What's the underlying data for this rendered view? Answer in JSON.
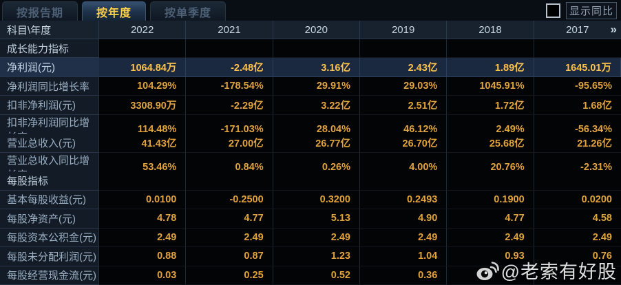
{
  "tabs": {
    "items": [
      {
        "name": "report-period",
        "label": "按报告期",
        "active": false
      },
      {
        "name": "annual",
        "label": "按年度",
        "active": true
      },
      {
        "name": "single-quarter",
        "label": "按单季度",
        "active": false
      }
    ]
  },
  "controls": {
    "show_yoy_label": "显示同比",
    "checkbox_checked": false
  },
  "table": {
    "corner_header": "科目\\年度",
    "year_headers": [
      "2022",
      "2021",
      "2020",
      "2019",
      "2018",
      "2017"
    ],
    "more_icon": "»",
    "rows": [
      {
        "type": "section",
        "label": "成长能力指标",
        "values": [
          "",
          "",
          "",
          "",
          "",
          ""
        ]
      },
      {
        "type": "data",
        "highlight": true,
        "label": "净利润(元)",
        "values": [
          "1064.84万",
          "-2.48亿",
          "3.16亿",
          "2.43亿",
          "1.89亿",
          "1645.01万"
        ]
      },
      {
        "type": "data",
        "highlight": false,
        "label": "净利润同比增长率",
        "values": [
          "104.29%",
          "-178.54%",
          "29.91%",
          "29.03%",
          "1045.91%",
          "-95.65%"
        ]
      },
      {
        "type": "data",
        "highlight": false,
        "label": "扣非净利润(元)",
        "values": [
          "3308.90万",
          "-2.29亿",
          "3.22亿",
          "2.51亿",
          "1.72亿",
          "1.68亿"
        ]
      },
      {
        "type": "data",
        "highlight": false,
        "label": "扣非净利润同比增长率",
        "values": [
          "114.48%",
          "-171.03%",
          "28.04%",
          "46.12%",
          "2.49%",
          "-56.34%"
        ]
      },
      {
        "type": "data",
        "highlight": false,
        "label": "营业总收入(元)",
        "values": [
          "41.43亿",
          "27.00亿",
          "26.77亿",
          "26.70亿",
          "25.68亿",
          "21.26亿"
        ]
      },
      {
        "type": "data",
        "highlight": false,
        "label": "营业总收入同比增长率",
        "values": [
          "53.46%",
          "0.84%",
          "0.26%",
          "4.00%",
          "20.76%",
          "-2.31%"
        ]
      },
      {
        "type": "section",
        "label": "每股指标",
        "values": [
          "",
          "",
          "",
          "",
          "",
          ""
        ]
      },
      {
        "type": "data",
        "highlight": false,
        "label": "基本每股收益(元)",
        "values": [
          "0.0100",
          "-0.2500",
          "0.3200",
          "0.2493",
          "0.1900",
          "0.0200"
        ]
      },
      {
        "type": "data",
        "highlight": false,
        "label": "每股净资产(元)",
        "values": [
          "4.78",
          "4.77",
          "5.13",
          "4.90",
          "4.77",
          "4.58"
        ]
      },
      {
        "type": "data",
        "highlight": false,
        "label": "每股资本公积金(元)",
        "values": [
          "2.49",
          "2.49",
          "2.49",
          "2.49",
          "2.49",
          "2.49"
        ]
      },
      {
        "type": "data",
        "highlight": false,
        "label": "每股未分配利润(元)",
        "values": [
          "0.88",
          "0.87",
          "1.23",
          "1.04",
          "0.93",
          "0.76"
        ]
      },
      {
        "type": "data",
        "highlight": false,
        "label": "每股经营现金流(元)",
        "values": [
          "0.03",
          "0.25",
          "0.52",
          "0.36",
          "",
          ""
        ]
      }
    ]
  },
  "watermark": {
    "icon": "weibo-logo",
    "text": "@老索有好股"
  },
  "colors": {
    "value_text": "#e2a33c",
    "highlight_row_bg": "#1b2940",
    "highlight_value_text": "#ffc14b",
    "tab_active_text": "#ffd24a",
    "header_bg": "#18222f",
    "label_column_bg": "#121b26"
  }
}
